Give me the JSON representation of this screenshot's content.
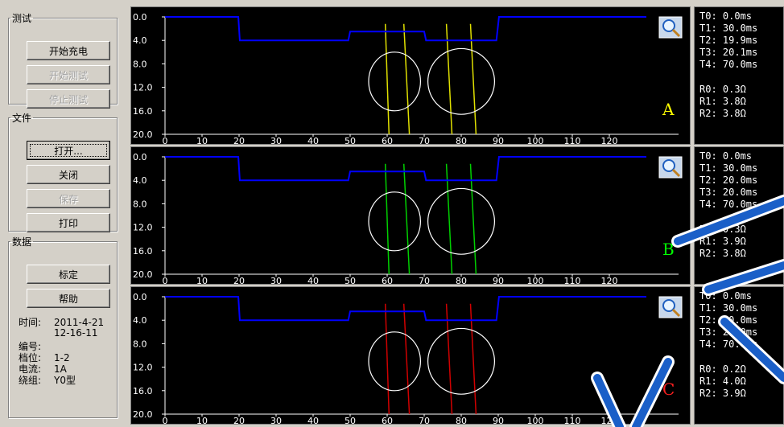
{
  "groups": {
    "test": {
      "title": "测试",
      "buttons": [
        {
          "label": "开始充电",
          "enabled": true
        },
        {
          "label": "开始测试",
          "enabled": false
        },
        {
          "label": "停止测试",
          "enabled": false
        }
      ]
    },
    "file": {
      "title": "文件",
      "buttons": [
        {
          "label": "打开...",
          "enabled": true,
          "focused": true
        },
        {
          "label": "关闭",
          "enabled": true
        },
        {
          "label": "保存",
          "enabled": false
        },
        {
          "label": "打印",
          "enabled": true
        }
      ]
    },
    "data": {
      "title": "数据",
      "buttons": [
        {
          "label": "标定",
          "enabled": true
        },
        {
          "label": "帮助",
          "enabled": true
        }
      ],
      "info": {
        "time_label": "时间:",
        "time_date": "2011-4-21",
        "time_clock": "12-16-11",
        "number_label": "编号:",
        "number_value": "",
        "gear_label": "档位:",
        "gear_value": "1-2",
        "current_label": "电流:",
        "current_value": "1A",
        "winding_label": "绕组:",
        "winding_value": "Y0型"
      }
    }
  },
  "panels": [
    {
      "phase": "A",
      "phase_color": "#ffff00",
      "trace_color": "#e0e000",
      "readouts": {
        "T0": "T0: 0.0ms",
        "T1": "T1: 30.0ms",
        "T2": "T2: 19.9ms",
        "T3": "T3: 20.1ms",
        "T4": "T4: 70.0ms",
        "R0": "R0: 0.3Ω",
        "R1": "R1: 3.8Ω",
        "R2": "R2: 3.8Ω"
      }
    },
    {
      "phase": "B",
      "phase_color": "#00ff00",
      "trace_color": "#00d000",
      "readouts": {
        "T0": "T0: 0.0ms",
        "T1": "T1: 30.0ms",
        "T2": "T2: 20.0ms",
        "T3": "T3: 20.0ms",
        "T4": "T4: 70.0ms",
        "R0": "R0: 0.3Ω",
        "R1": "R1: 3.9Ω",
        "R2": "R2: 3.8Ω"
      }
    },
    {
      "phase": "C",
      "phase_color": "#ff2020",
      "trace_color": "#d00000",
      "readouts": {
        "T0": "T0: 0.0ms",
        "T1": "T1: 30.0ms",
        "T2": "T2: 20.0ms",
        "T3": "T3: 20.0ms",
        "T4": "T4: 70.0ms",
        "R0": "R0: 0.2Ω",
        "R1": "R1: 4.0Ω",
        "R2": "R2: 3.9Ω"
      }
    }
  ],
  "chart_data": {
    "type": "line",
    "xlim": [
      0,
      130
    ],
    "ylim": [
      0,
      20
    ],
    "y_inverted": true,
    "x_ticks": [
      0,
      10,
      20,
      30,
      40,
      50,
      60,
      70,
      80,
      90,
      100,
      110,
      120
    ],
    "y_ticks": [
      "0.0",
      "4.0",
      "8.0",
      "12.0",
      "16.0",
      "20.0"
    ],
    "grid": false,
    "series": [
      {
        "color": "#0000ff",
        "x": [
          0,
          19.8,
          20.2,
          49.5,
          50,
          70,
          70.5,
          89.5,
          90.2,
          130
        ],
        "y": [
          0,
          0,
          4,
          4,
          2.5,
          2.5,
          4,
          4,
          0,
          0
        ]
      }
    ],
    "vertical_traces_x": [
      [
        59.5,
        60.5
      ],
      [
        64.5,
        66
      ],
      [
        76,
        77.5
      ],
      [
        82.5,
        84
      ]
    ],
    "circles": [
      {
        "cx": 62,
        "cy": 11,
        "rx": 7,
        "ry": 5
      },
      {
        "cx": 80,
        "cy": 11,
        "rx": 9,
        "ry": 5.6
      }
    ]
  },
  "magnifier_icon": "magnifier-icon"
}
